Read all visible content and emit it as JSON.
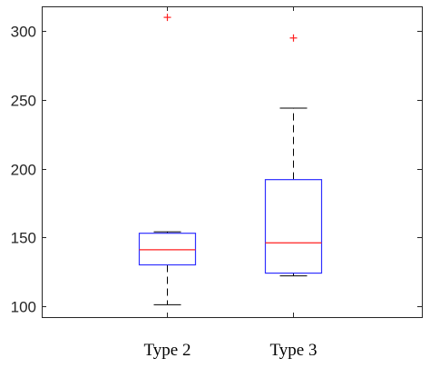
{
  "chart_data": {
    "type": "box",
    "title": "",
    "xlabel": "",
    "ylabel": "",
    "ylim": [
      92,
      318
    ],
    "yticks": [
      100,
      150,
      200,
      250,
      300
    ],
    "grid": false,
    "legend": "none",
    "categories": [
      "Type 2",
      "Type 3"
    ],
    "boxes": [
      {
        "category": "Type 2",
        "whisker_low": 101,
        "q1": 130,
        "median": 141,
        "q3": 153,
        "whisker_high": 154,
        "outliers": [
          310
        ]
      },
      {
        "category": "Type 3",
        "whisker_low": 122,
        "q1": 124,
        "median": 146,
        "q3": 192,
        "whisker_high": 244,
        "outliers": [
          295
        ]
      }
    ],
    "colors": {
      "box": "#3030ff",
      "median": "#ff2020",
      "whisker": "#000000",
      "outlier": "#ff2020",
      "axes": "#262626"
    }
  }
}
